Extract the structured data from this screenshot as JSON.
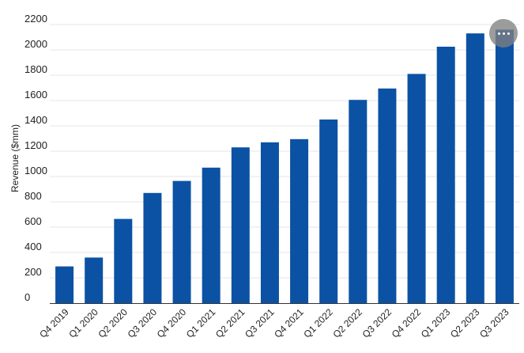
{
  "chart_data": {
    "type": "bar",
    "title": "",
    "xlabel": "",
    "ylabel": "Revenue ($mm)",
    "ylim": [
      0,
      2200
    ],
    "yticks": [
      0,
      200,
      400,
      600,
      800,
      1000,
      1200,
      1400,
      1600,
      1800,
      2000,
      2200
    ],
    "grid": true,
    "categories": [
      "Q4 2019",
      "Q1 2020",
      "Q2 2020",
      "Q3 2020",
      "Q4 2020",
      "Q1 2021",
      "Q2 2021",
      "Q3 2021",
      "Q4 2021",
      "Q1 2022",
      "Q2 2022",
      "Q3 2022",
      "Q4 2022",
      "Q1 2023",
      "Q2 2023",
      "Q3 2023"
    ],
    "values": [
      290,
      360,
      665,
      870,
      965,
      1070,
      1230,
      1270,
      1295,
      1450,
      1605,
      1695,
      1810,
      2025,
      2130,
      2160
    ],
    "bar_color": "#0b52a4",
    "grid_color": "#e6e6e6"
  },
  "menu": {
    "icon": "more-options-icon"
  }
}
